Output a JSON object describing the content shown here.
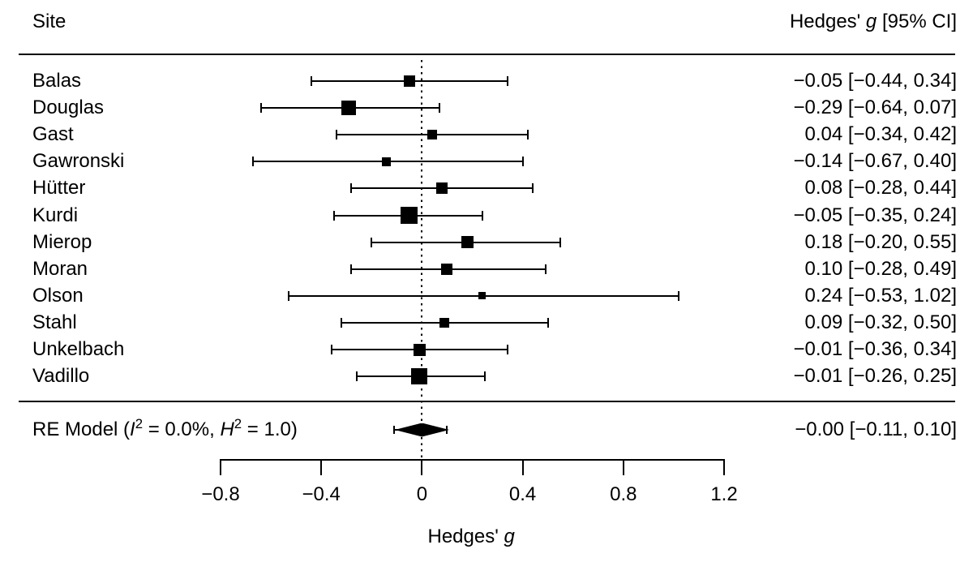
{
  "chart_data": {
    "type": "forest",
    "columns": {
      "left": "Site",
      "right_parts": {
        "pre": "Hedges' ",
        "ital": "g",
        "post": " [95% CI]"
      }
    },
    "xlabel_parts": {
      "pre": "Hedges' ",
      "ital": "g"
    },
    "x_ticks": [
      {
        "value": -0.8,
        "label": "−0.8"
      },
      {
        "value": -0.4,
        "label": "−0.4"
      },
      {
        "value": 0,
        "label": "0"
      },
      {
        "value": 0.4,
        "label": "0.4"
      },
      {
        "value": 0.8,
        "label": "0.8"
      },
      {
        "value": 1.2,
        "label": "1.2"
      }
    ],
    "xlim": [
      -0.8,
      1.2
    ],
    "zero_reference": 0,
    "studies": [
      {
        "site": "Balas",
        "g": -0.05,
        "ci_low": -0.44,
        "ci_high": 0.34,
        "marker_size": 14,
        "estimate_label": "−0.05 [−0.44, 0.34]"
      },
      {
        "site": "Douglas",
        "g": -0.29,
        "ci_low": -0.64,
        "ci_high": 0.07,
        "marker_size": 18,
        "estimate_label": "−0.29 [−0.64, 0.07]"
      },
      {
        "site": "Gast",
        "g": 0.04,
        "ci_low": -0.34,
        "ci_high": 0.42,
        "marker_size": 12,
        "estimate_label": "0.04 [−0.34, 0.42]"
      },
      {
        "site": "Gawronski",
        "g": -0.14,
        "ci_low": -0.67,
        "ci_high": 0.4,
        "marker_size": 11,
        "estimate_label": "−0.14 [−0.67, 0.40]"
      },
      {
        "site": "Hütter",
        "g": 0.08,
        "ci_low": -0.28,
        "ci_high": 0.44,
        "marker_size": 14,
        "estimate_label": "0.08 [−0.28, 0.44]"
      },
      {
        "site": "Kurdi",
        "g": -0.05,
        "ci_low": -0.35,
        "ci_high": 0.24,
        "marker_size": 21,
        "estimate_label": "−0.05 [−0.35, 0.24]"
      },
      {
        "site": "Mierop",
        "g": 0.18,
        "ci_low": -0.2,
        "ci_high": 0.55,
        "marker_size": 15,
        "estimate_label": "0.18 [−0.20, 0.55]"
      },
      {
        "site": "Moran",
        "g": 0.1,
        "ci_low": -0.28,
        "ci_high": 0.49,
        "marker_size": 14,
        "estimate_label": "0.10 [−0.28, 0.49]"
      },
      {
        "site": "Olson",
        "g": 0.24,
        "ci_low": -0.53,
        "ci_high": 1.02,
        "marker_size": 9,
        "estimate_label": "0.24 [−0.53, 1.02]"
      },
      {
        "site": "Stahl",
        "g": 0.09,
        "ci_low": -0.32,
        "ci_high": 0.5,
        "marker_size": 12,
        "estimate_label": "0.09 [−0.32, 0.50]"
      },
      {
        "site": "Unkelbach",
        "g": -0.01,
        "ci_low": -0.36,
        "ci_high": 0.34,
        "marker_size": 15,
        "estimate_label": "−0.01 [−0.36, 0.34]"
      },
      {
        "site": "Vadillo",
        "g": -0.01,
        "ci_low": -0.26,
        "ci_high": 0.25,
        "marker_size": 20,
        "estimate_label": "−0.01 [−0.26, 0.25]"
      }
    ],
    "summary": {
      "label_parts": {
        "prefix": "RE Model (",
        "i_sym": "I",
        "i_exp": "2",
        "mid": " = 0.0%, ",
        "h_sym": "H",
        "h_exp": "2",
        "suffix": " = 1.0)"
      },
      "g": -0.0,
      "ci_low": -0.11,
      "ci_high": 0.1,
      "estimate_label": "−0.00 [−0.11, 0.10]"
    }
  }
}
